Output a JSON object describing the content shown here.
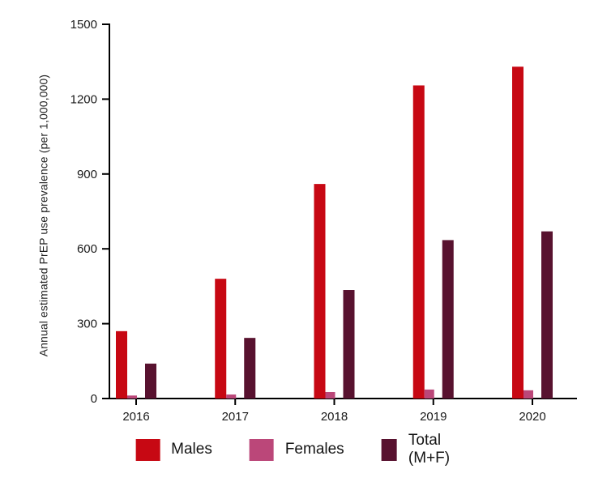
{
  "chart_data": {
    "type": "bar",
    "title": "",
    "xlabel": "",
    "ylabel": "Annual estimated PrEP use prevalence (per 1,000,000)",
    "categories": [
      "2016",
      "2017",
      "2018",
      "2019",
      "2020"
    ],
    "series": [
      {
        "name": "Males",
        "color": "#c70813",
        "values": [
          270,
          480,
          860,
          1255,
          1330
        ]
      },
      {
        "name": "Females",
        "color": "#bb4779",
        "values": [
          12,
          16,
          26,
          36,
          33
        ]
      },
      {
        "name": "Total (M+F)",
        "color": "#58122f",
        "values": [
          140,
          243,
          435,
          635,
          670
        ]
      }
    ],
    "ylim": [
      0,
      1500
    ],
    "yticks": [
      0,
      300,
      600,
      900,
      1200,
      1500
    ],
    "grid": false,
    "legend_position": "bottom",
    "axis_color": "#000000"
  }
}
